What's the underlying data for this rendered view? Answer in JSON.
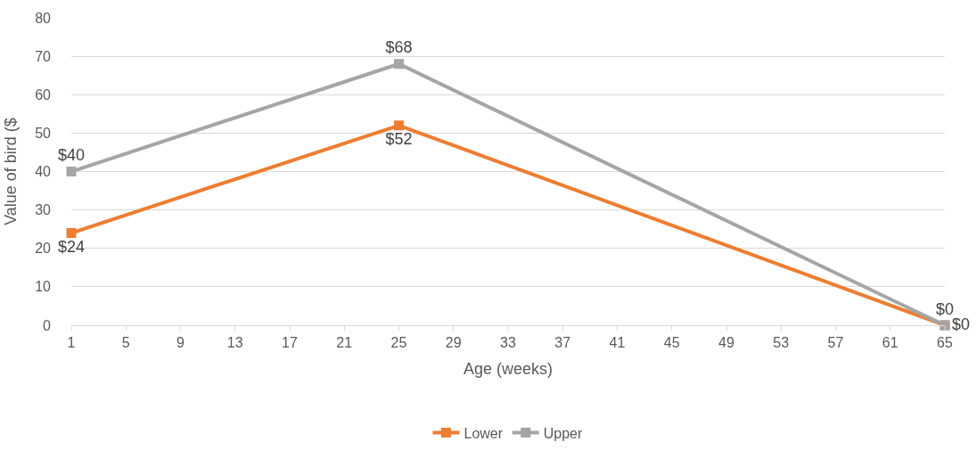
{
  "chart_data": {
    "type": "line",
    "xlabel": "Age (weeks)",
    "ylabel": "Value of bird ($",
    "x": [
      1,
      25,
      65
    ],
    "series": [
      {
        "name": "Lower",
        "color": "#ed7d31",
        "values": [
          24,
          52,
          0
        ],
        "value_labels": [
          "$24",
          "$52",
          "$0"
        ]
      },
      {
        "name": "Upper",
        "color": "#a5a5a5",
        "values": [
          40,
          68,
          0
        ],
        "value_labels": [
          "$40",
          "$68",
          "$0"
        ]
      }
    ],
    "xlim": [
      1,
      65
    ],
    "xticks": [
      1,
      5,
      9,
      13,
      17,
      21,
      25,
      29,
      33,
      37,
      41,
      45,
      49,
      53,
      57,
      61,
      65
    ],
    "ylim": [
      0,
      80
    ],
    "yticks": [
      0,
      10,
      20,
      30,
      40,
      50,
      60,
      70,
      80
    ],
    "grid": "y",
    "legend": "bottom",
    "marker": "square",
    "line_style": "solid"
  }
}
